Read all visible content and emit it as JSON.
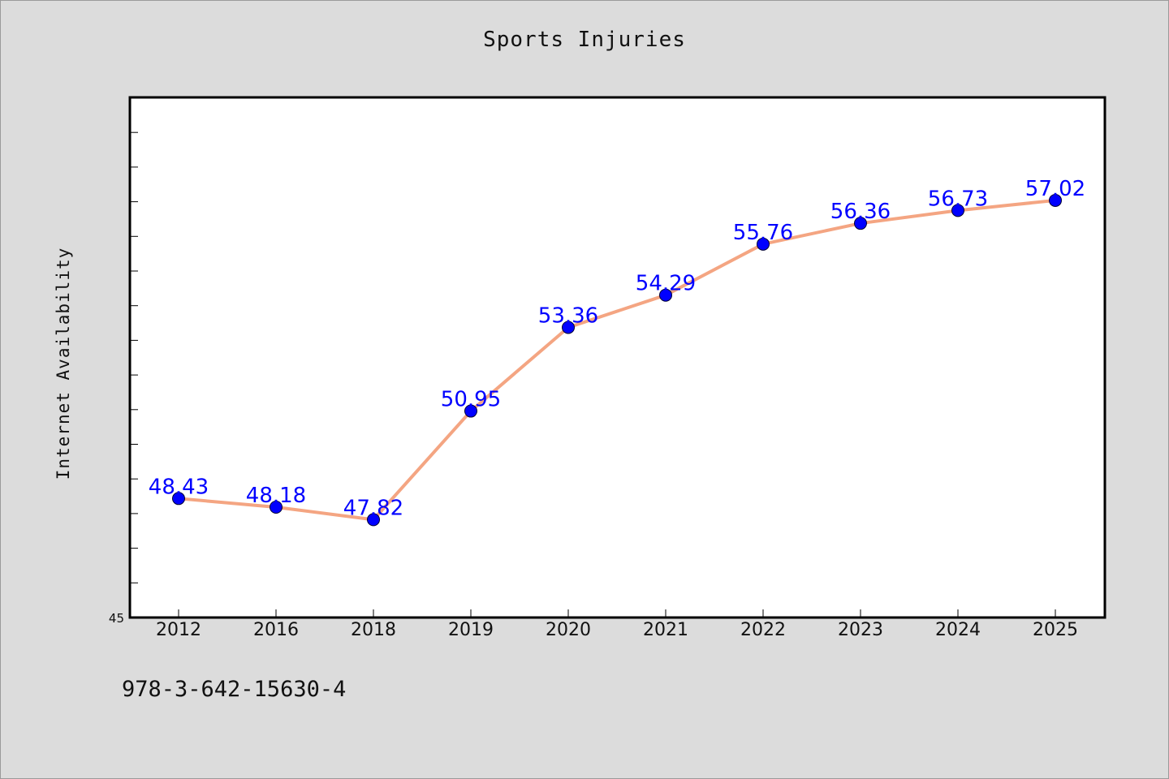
{
  "chart_data": {
    "type": "line",
    "title": "Sports Injuries",
    "xlabel": "",
    "ylabel": "Internet Availability",
    "categories": [
      "2012",
      "2016",
      "2018",
      "2019",
      "2020",
      "2021",
      "2022",
      "2023",
      "2024",
      "2025"
    ],
    "series": [
      {
        "values": [
          48.43,
          48.18,
          47.82,
          50.95,
          53.36,
          54.29,
          55.76,
          56.36,
          56.73,
          57.02
        ]
      }
    ],
    "y_tick_labels": [
      "45"
    ],
    "ylim": [
      45,
      60
    ],
    "data_labels": true,
    "grid": false,
    "colors": {
      "line": "#f4a582",
      "marker": "#0000ff",
      "data_label": "#0000ff",
      "background": "#dcdcdc",
      "plot_background": "#ffffff"
    }
  },
  "footer": {
    "text": "978-3-642-15630-4"
  }
}
